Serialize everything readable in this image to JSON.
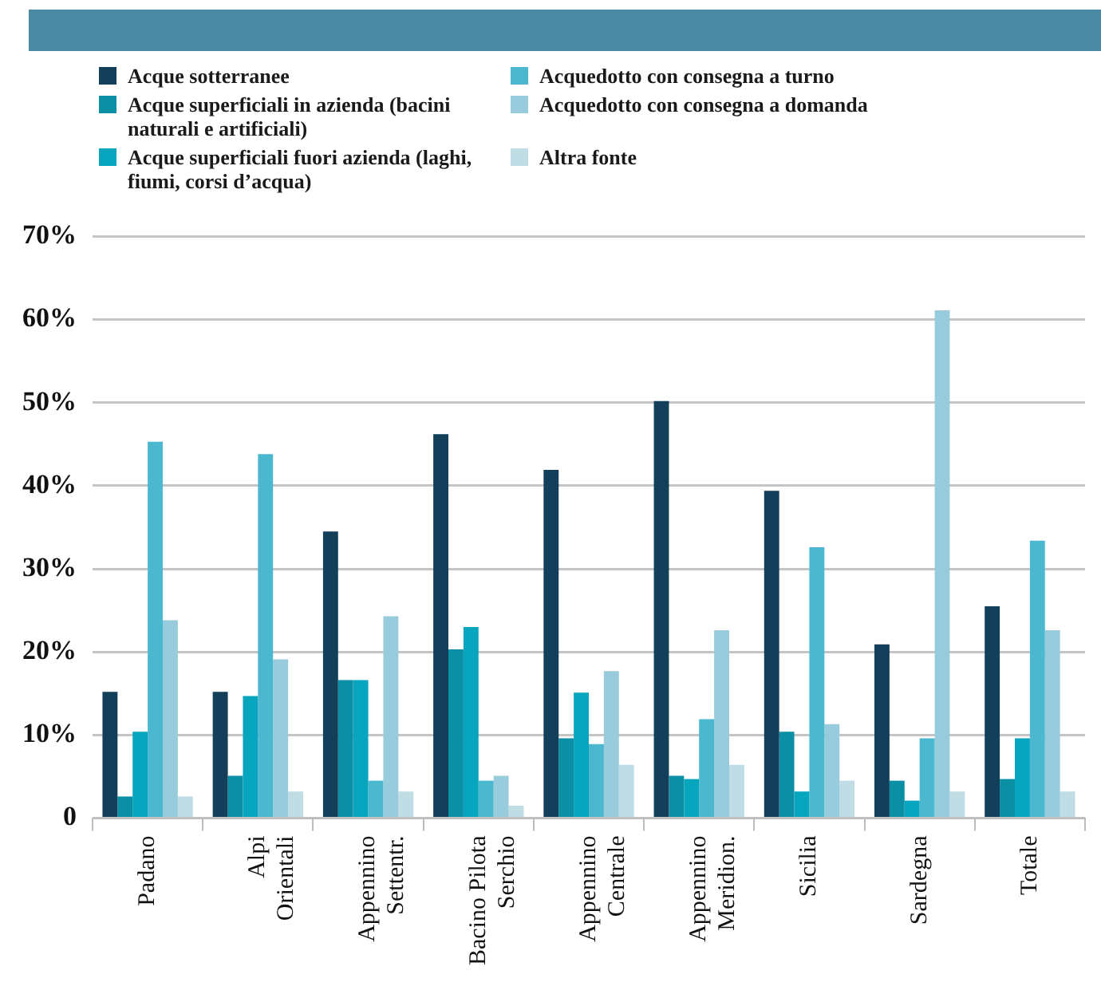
{
  "chart_data": {
    "type": "bar",
    "categories": [
      "Padano",
      "Alpi Orientali",
      "Appennino Settentr.",
      "Bacino Pilota Serchio",
      "Appennino Centrale",
      "Appennino Meridion.",
      "Sicilia",
      "Sardegna",
      "Totale"
    ],
    "series": [
      {
        "name": "Acque sotterranee",
        "color": "#143f5a",
        "values": [
          15.2,
          15.2,
          34.5,
          46.2,
          41.9,
          50.2,
          39.4,
          20.9,
          25.5
        ]
      },
      {
        "name": "Acque superficiali in azienda (bacini naturali e artificiali)",
        "color": "#0a8fa5",
        "values": [
          2.6,
          5.1,
          16.6,
          20.3,
          9.6,
          5.1,
          10.4,
          4.5,
          4.7
        ]
      },
      {
        "name": "Acque superficiali fuori azienda (laghi, fiumi, corsi d’acqua)",
        "color": "#08a5bf",
        "values": [
          10.4,
          14.7,
          16.6,
          23.0,
          15.1,
          4.7,
          3.2,
          2.1,
          9.6
        ]
      },
      {
        "name": "Acquedotto con consegna a turno",
        "color": "#4bb8d0",
        "values": [
          45.3,
          43.8,
          4.5,
          4.5,
          8.9,
          11.9,
          32.6,
          9.6,
          33.4
        ]
      },
      {
        "name": "Acquedotto con consegna a domanda",
        "color": "#98cbdc",
        "values": [
          23.8,
          19.1,
          24.3,
          5.1,
          17.7,
          22.6,
          11.3,
          61.1,
          22.6
        ]
      },
      {
        "name": "Altra fonte",
        "color": "#c0dde5",
        "values": [
          2.6,
          3.2,
          3.2,
          1.5,
          6.4,
          6.4,
          4.5,
          3.2,
          3.2
        ]
      }
    ],
    "ylim": [
      0,
      70
    ],
    "yticks": [
      {
        "value": 0,
        "label": "0"
      },
      {
        "value": 10,
        "label": "10%"
      },
      {
        "value": 20,
        "label": "20%"
      },
      {
        "value": 30,
        "label": "30%"
      },
      {
        "value": 40,
        "label": "40%"
      },
      {
        "value": 50,
        "label": "50%"
      },
      {
        "value": 60,
        "label": "60%"
      },
      {
        "value": 70,
        "label": "70%"
      }
    ],
    "grid": "y",
    "legend": "top left"
  }
}
